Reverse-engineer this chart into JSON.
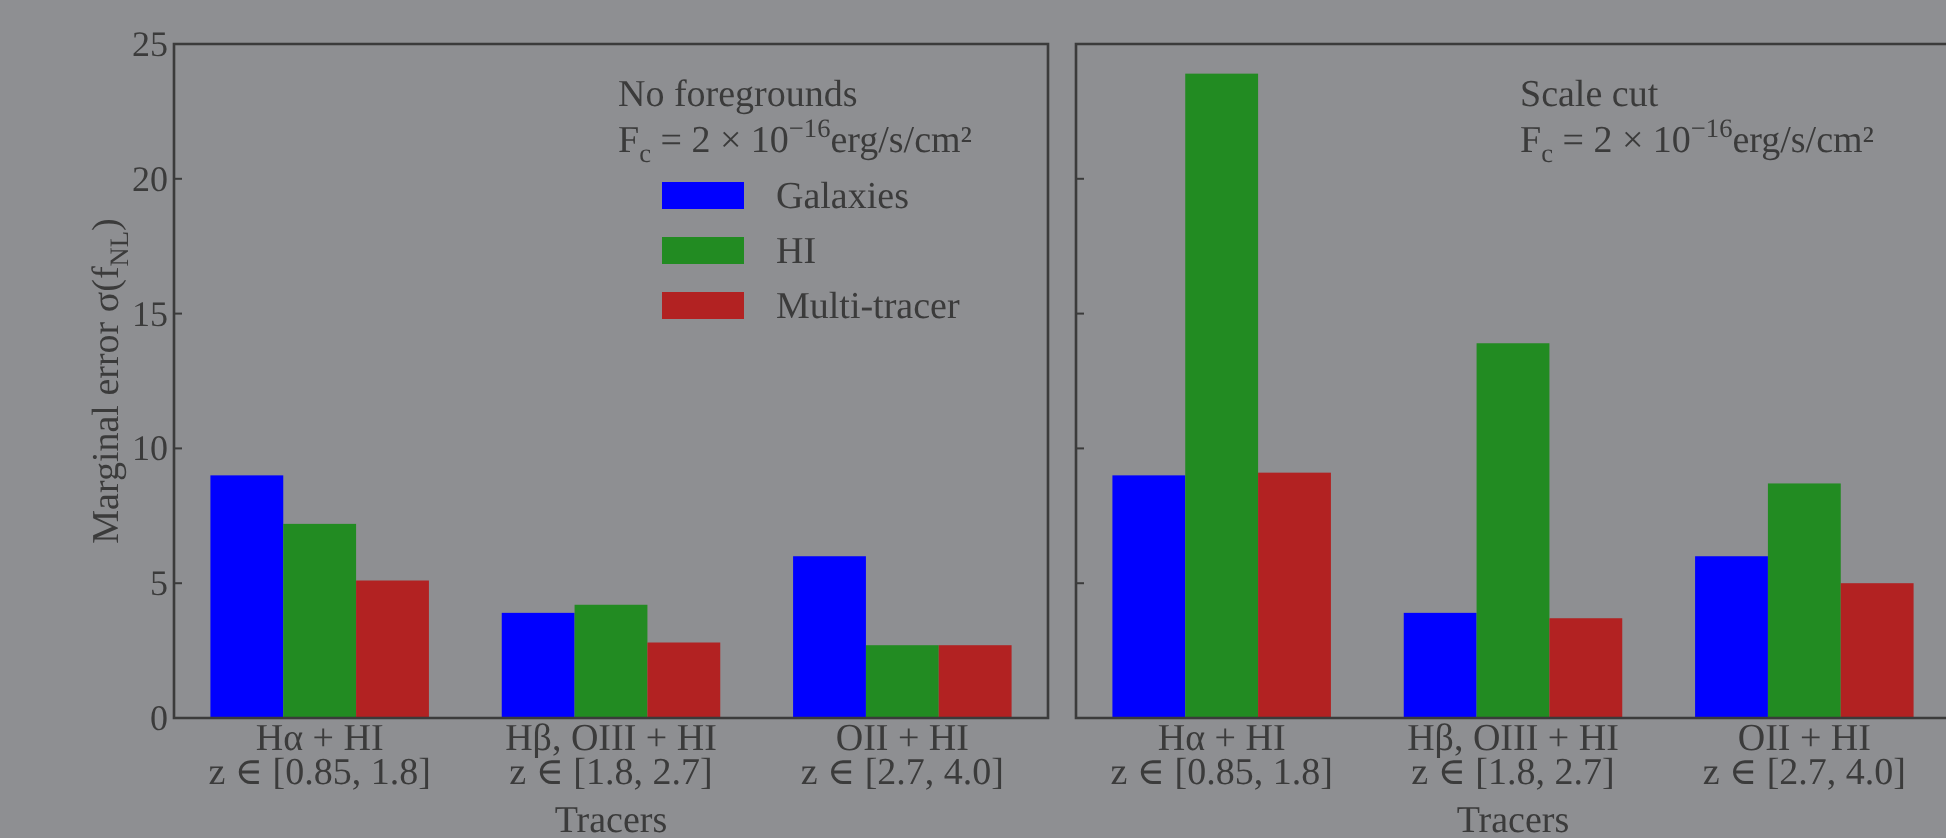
{
  "chart_data": [
    {
      "type": "bar",
      "categories": [
        "Hα + HI\nz ∈ [0.85, 1.8]",
        "Hβ, OIII + HI\nz ∈ [1.8, 2.7]",
        "OII + HI\nz ∈ [2.7, 4.0]"
      ],
      "series": [
        {
          "name": "Galaxies",
          "color": "#0000ff",
          "values": [
            9.0,
            3.9,
            6.0
          ]
        },
        {
          "name": "HI",
          "color": "#228b22",
          "values": [
            7.2,
            4.2,
            2.7
          ]
        },
        {
          "name": "Multi-tracer",
          "color": "#b22222",
          "values": [
            5.1,
            2.8,
            2.7
          ]
        }
      ],
      "xlabel": "Tracers",
      "ylabel": "Marginal error σ(f$_{NL}$)",
      "ylim": [
        0,
        25
      ],
      "yticks": [
        0,
        5,
        10,
        15,
        20,
        25
      ],
      "legend": "top right",
      "legend_title": "No foregrounds\nF$_{c}$ = 2 × 10$^{−16}$erg/s/cm²"
    },
    {
      "type": "bar",
      "categories": [
        "Hα + HI\nz ∈ [0.85, 1.8]",
        "Hβ, OIII + HI\nz ∈ [1.8, 2.7]",
        "OII + HI\nz ∈ [2.7, 4.0]"
      ],
      "series": [
        {
          "color": "#0000ff",
          "values": [
            9.0,
            3.9,
            6.0
          ]
        },
        {
          "color": "#228b22",
          "values": [
            23.9,
            13.9,
            8.7
          ]
        },
        {
          "color": "#b22222",
          "values": [
            9.1,
            3.7,
            5.0
          ]
        }
      ],
      "xlabel": "Tracers",
      "ylim": [
        0,
        25
      ],
      "yticks": [
        0,
        5,
        10,
        15,
        20,
        25
      ],
      "tick_labels": "x",
      "annotations": [
        "Scale cut",
        "F$_{c}$ = 2 × 10$^{−16}$erg/s/cm²"
      ]
    }
  ]
}
